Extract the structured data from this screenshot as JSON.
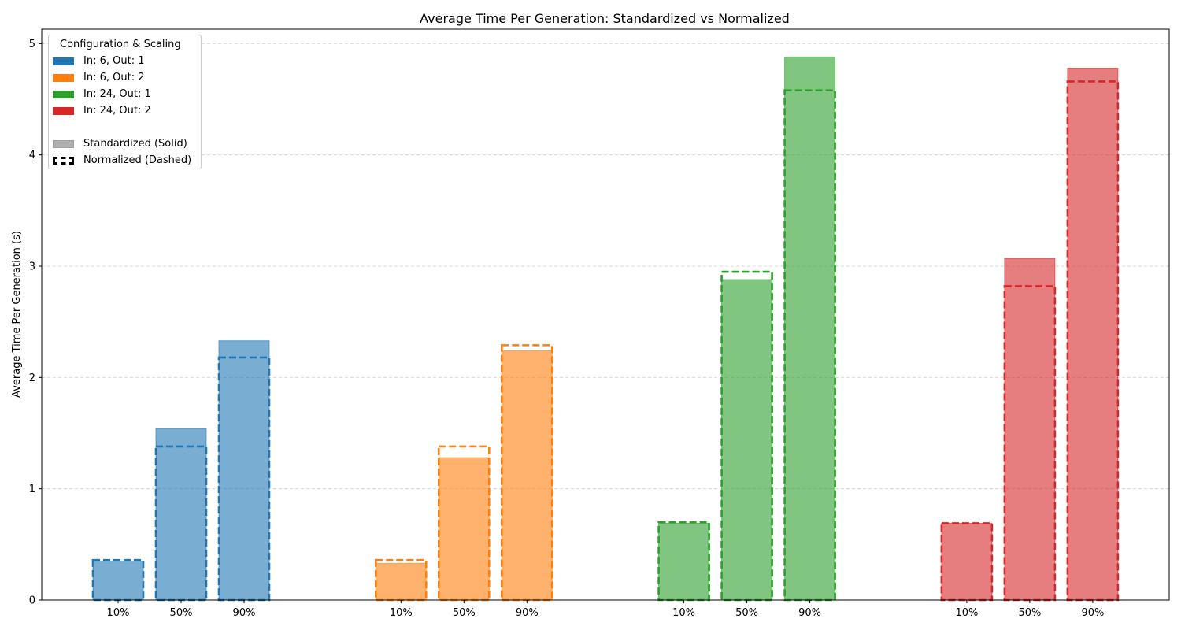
{
  "chart_data": {
    "type": "bar",
    "title": "Average Time Per Generation: Standardized vs Normalized",
    "xlabel": "",
    "ylabel": "Average Time Per Generation (s)",
    "ylim": [
      0,
      5.13
    ],
    "yticks": [
      "0",
      "1",
      "2",
      "3",
      "4",
      "5"
    ],
    "grid": "y-dashed",
    "legend": {
      "title": "Configuration & Scaling",
      "placement": "top-left",
      "configs": [
        "In: 6, Out: 1",
        "In: 6, Out: 2",
        "In: 24, Out: 1",
        "In: 24, Out: 2"
      ],
      "styles": [
        "Standardized (Solid)",
        "Normalized (Dashed)"
      ]
    },
    "colors": [
      "#1f77b4",
      "#ff7f0e",
      "#2ca02c",
      "#d62728"
    ],
    "categories": [
      "10%",
      "50%",
      "90%"
    ],
    "groups": [
      {
        "config": "In: 6, Out: 1",
        "standardized": [
          0.35,
          1.54,
          2.33
        ],
        "normalized": [
          0.36,
          1.38,
          2.18
        ]
      },
      {
        "config": "In: 6, Out: 2",
        "standardized": [
          0.33,
          1.28,
          2.24
        ],
        "normalized": [
          0.36,
          1.38,
          2.29
        ]
      },
      {
        "config": "In: 24, Out: 1",
        "standardized": [
          0.69,
          2.88,
          4.88
        ],
        "normalized": [
          0.7,
          2.95,
          4.58
        ]
      },
      {
        "config": "In: 24, Out: 2",
        "standardized": [
          0.69,
          3.07,
          4.78
        ],
        "normalized": [
          0.69,
          2.82,
          4.66
        ]
      }
    ]
  }
}
